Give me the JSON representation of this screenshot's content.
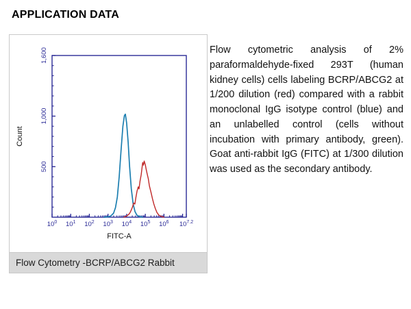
{
  "page": {
    "title": "APPLICATION DATA"
  },
  "figure": {
    "caption": "Flow Cytometry -BCRP/ABCG2 Rabbit"
  },
  "description": {
    "text": "Flow cytometric analysis of 2% paraformaldehyde-fixed 293T (human kidney cells) cells labeling BCRP/ABCG2 at 1/200 dilution (red) compared with a rabbit monoclonal IgG isotype control (blue) and an unlabelled control (cells without incubation with primary antibody, green). Goat anti-rabbit IgG (FITC) at 1/300 dilution was used as the secondary antibody."
  },
  "chart_data": {
    "type": "line",
    "title": "",
    "xlabel": "FITC-A",
    "ylabel": "Count",
    "x_scale": "log10",
    "xlim_log": [
      0,
      7.2
    ],
    "ylim": [
      0,
      1600
    ],
    "grid": false,
    "legend": "none",
    "colors": {
      "axis": "#2a2a96",
      "axis_title": "#111111"
    },
    "x_ticks": [
      {
        "pos": 0,
        "base": "10",
        "exp": "0"
      },
      {
        "pos": 1,
        "base": "10",
        "exp": "1"
      },
      {
        "pos": 2,
        "base": "10",
        "exp": "2"
      },
      {
        "pos": 3,
        "base": "10",
        "exp": "3"
      },
      {
        "pos": 4,
        "base": "10",
        "exp": "4"
      },
      {
        "pos": 5,
        "base": "10",
        "exp": "5"
      },
      {
        "pos": 6,
        "base": "10",
        "exp": "6"
      },
      {
        "pos": 7.2,
        "base": "10",
        "exp": "7.2"
      }
    ],
    "y_ticks": [
      {
        "value": 500,
        "label": "500"
      },
      {
        "value": 1000,
        "label": "1,000"
      },
      {
        "value": 1600,
        "label": "1,600"
      }
    ],
    "series": [
      {
        "name": "rabbit monoclonal IgG isotype control (blue)",
        "color": "#1b7eb0",
        "width": 1.7,
        "points": [
          [
            2.8,
            0
          ],
          [
            3.0,
            4
          ],
          [
            3.15,
            12
          ],
          [
            3.3,
            40
          ],
          [
            3.4,
            95
          ],
          [
            3.5,
            200
          ],
          [
            3.6,
            400
          ],
          [
            3.7,
            660
          ],
          [
            3.8,
            900
          ],
          [
            3.88,
            1005
          ],
          [
            3.93,
            1020
          ],
          [
            4.0,
            930
          ],
          [
            4.08,
            740
          ],
          [
            4.16,
            500
          ],
          [
            4.25,
            280
          ],
          [
            4.35,
            130
          ],
          [
            4.45,
            55
          ],
          [
            4.55,
            20
          ],
          [
            4.7,
            6
          ],
          [
            4.85,
            0
          ]
        ]
      },
      {
        "name": "BCRP/ABCG2 at 1/200 dilution (red)",
        "color": "#c02828",
        "width": 1.4,
        "points": [
          [
            3.85,
            0
          ],
          [
            3.95,
            6
          ],
          [
            4.05,
            18
          ],
          [
            4.15,
            35
          ],
          [
            4.22,
            60
          ],
          [
            4.3,
            95
          ],
          [
            4.38,
            140
          ],
          [
            4.44,
            130
          ],
          [
            4.5,
            200
          ],
          [
            4.56,
            260
          ],
          [
            4.62,
            300
          ],
          [
            4.66,
            280
          ],
          [
            4.72,
            360
          ],
          [
            4.78,
            420
          ],
          [
            4.82,
            480
          ],
          [
            4.86,
            540
          ],
          [
            4.9,
            515
          ],
          [
            4.94,
            555
          ],
          [
            5.0,
            520
          ],
          [
            5.05,
            470
          ],
          [
            5.1,
            430
          ],
          [
            5.16,
            380
          ],
          [
            5.22,
            310
          ],
          [
            5.3,
            250
          ],
          [
            5.38,
            185
          ],
          [
            5.46,
            130
          ],
          [
            5.54,
            85
          ],
          [
            5.62,
            48
          ],
          [
            5.72,
            22
          ],
          [
            5.85,
            8
          ],
          [
            6.0,
            0
          ]
        ]
      }
    ]
  }
}
